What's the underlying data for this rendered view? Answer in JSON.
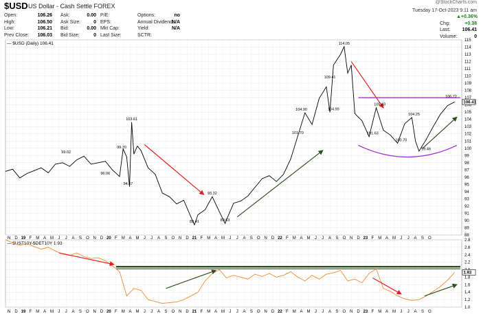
{
  "header": {
    "symbol": "$USD",
    "description": "US Dollar - Cash Settle FOREX",
    "datetime": "Tuesday 17-Oct-2023 9:11 am",
    "brand": "@StockCharts.com"
  },
  "quote": {
    "col1": [
      {
        "label": "Open:",
        "value": "106.26"
      },
      {
        "label": "High:",
        "value": "106.50"
      },
      {
        "label": "Low:",
        "value": "106.21"
      },
      {
        "label": "Prev Close:",
        "value": "106.03"
      }
    ],
    "col2": [
      {
        "label": "Ask:",
        "value": "0.00"
      },
      {
        "label": "Ask Size:",
        "value": "0"
      },
      {
        "label": "Bid:",
        "value": "0.00"
      },
      {
        "label": "Bid Size:",
        "value": "0"
      }
    ],
    "col3": [
      {
        "label": "P/E:",
        "value": ""
      },
      {
        "label": "EPS:",
        "value": ""
      },
      {
        "label": "Mkt Cap:",
        "value": ""
      },
      {
        "label": "Last Size:",
        "value": ""
      }
    ],
    "col4": [
      {
        "label": "Options:",
        "value": "no"
      },
      {
        "label": "Annual Dividend:",
        "value": "N/A"
      },
      {
        "label": "Yield:",
        "value": "N/A"
      },
      {
        "label": "SCTR:",
        "value": ""
      }
    ],
    "right": [
      {
        "label": "",
        "value": "+0.36%"
      },
      {
        "label": "Chg:",
        "value": "+0.38"
      },
      {
        "label": "Last:",
        "value": "106.41"
      },
      {
        "label": "Volume:",
        "value": "0"
      }
    ]
  },
  "chart_data": [
    {
      "type": "line",
      "legend": "$USD (Daily) 106.41",
      "ylim": [
        88,
        115
      ],
      "yticks": [
        88,
        89,
        90,
        91,
        92,
        93,
        94,
        95,
        96,
        97,
        98,
        99,
        100,
        101,
        102,
        103,
        104,
        105,
        106,
        107,
        108,
        109,
        110,
        111,
        112,
        113,
        114,
        115
      ],
      "last_value_label": "106.41",
      "x_months": [
        "N",
        "D",
        "19",
        "F",
        "M",
        "A",
        "M",
        "J",
        "J",
        "A",
        "S",
        "O",
        "N",
        "D",
        "20",
        "F",
        "M",
        "A",
        "M",
        "J",
        "J",
        "A",
        "S",
        "O",
        "N",
        "D",
        "21",
        "F",
        "M",
        "A",
        "M",
        "J",
        "J",
        "A",
        "S",
        "O",
        "N",
        "D",
        "22",
        "F",
        "M",
        "A",
        "M",
        "J",
        "J",
        "A",
        "S",
        "O",
        "N",
        "D",
        "23",
        "F",
        "M",
        "A",
        "M",
        "J",
        "J",
        "A",
        "S",
        "O"
      ],
      "series": [
        {
          "values": [
            [
              0,
              96.8
            ],
            [
              1,
              97.1
            ],
            [
              2,
              95.9
            ],
            [
              3,
              96.5
            ],
            [
              4,
              96.9
            ],
            [
              5,
              97.3
            ],
            [
              6,
              96.6
            ],
            [
              7,
              97.8
            ],
            [
              8,
              98.0
            ],
            [
              9,
              97.5
            ],
            [
              10,
              98.4
            ],
            [
              11,
              98.9
            ],
            [
              12,
              97.8
            ],
            [
              13,
              98.0
            ],
            [
              14,
              98.2
            ],
            [
              15,
              97.0
            ],
            [
              16,
              96.1
            ],
            [
              16.5,
              99.9
            ],
            [
              17,
              98.8
            ],
            [
              17.4,
              94.7
            ],
            [
              17.7,
              103.6
            ],
            [
              18,
              99.2
            ],
            [
              18.5,
              100.3
            ],
            [
              19,
              99.7
            ],
            [
              20,
              97.3
            ],
            [
              21,
              96.4
            ],
            [
              22,
              93.8
            ],
            [
              23,
              93.3
            ],
            [
              24,
              92.3
            ],
            [
              25,
              92.8
            ],
            [
              26,
              90.5
            ],
            [
              26.5,
              89.4
            ],
            [
              27,
              90.8
            ],
            [
              28,
              91.5
            ],
            [
              29,
              93.3
            ],
            [
              30,
              91.2
            ],
            [
              30.8,
              89.6
            ],
            [
              31,
              90.1
            ],
            [
              32,
              92.4
            ],
            [
              33,
              92.7
            ],
            [
              34,
              93.4
            ],
            [
              35,
              94.6
            ],
            [
              36,
              95.8
            ],
            [
              37,
              96.2
            ],
            [
              38,
              95.4
            ],
            [
              39,
              96.4
            ],
            [
              40,
              98.5
            ],
            [
              41,
              101.7
            ],
            [
              42,
              104.9
            ],
            [
              43,
              103.3
            ],
            [
              44,
              106.9
            ],
            [
              45,
              108.5
            ],
            [
              45.5,
              105.0
            ],
            [
              46,
              111.5
            ],
            [
              47,
              113.0
            ],
            [
              47.5,
              114.05
            ],
            [
              48,
              110.4
            ],
            [
              48.5,
              111.5
            ],
            [
              49,
              104.8
            ],
            [
              50,
              103.8
            ],
            [
              51,
              101.6
            ],
            [
              52,
              105.6
            ],
            [
              53,
              102.5
            ],
            [
              54,
              101.8
            ],
            [
              55,
              100.7
            ],
            [
              56,
              103.4
            ],
            [
              57,
              104.25
            ],
            [
              57.5,
              101.0
            ],
            [
              58,
              99.6
            ],
            [
              59,
              101.2
            ],
            [
              60,
              103.0
            ],
            [
              61,
              104.7
            ],
            [
              62,
              105.9
            ],
            [
              63,
              106.41
            ]
          ]
        }
      ],
      "annotations": [
        {
          "x": 8.5,
          "y": 99.02,
          "text": "99.02"
        },
        {
          "x": 14,
          "y": 96.06,
          "text": "96.06"
        },
        {
          "x": 16.3,
          "y": 99.7,
          "text": "99.70"
        },
        {
          "x": 17.2,
          "y": 94.67,
          "text": "94.67"
        },
        {
          "x": 17.7,
          "y": 103.61,
          "text": "103.61"
        },
        {
          "x": 26.5,
          "y": 89.41,
          "text": "89.41"
        },
        {
          "x": 29,
          "y": 93.32,
          "text": "93.32"
        },
        {
          "x": 30.8,
          "y": 89.63,
          "text": "89.63"
        },
        {
          "x": 41.5,
          "y": 104.9,
          "text": "104.90"
        },
        {
          "x": 41,
          "y": 101.7,
          "text": "101.70"
        },
        {
          "x": 45.5,
          "y": 109.41,
          "text": "109.41"
        },
        {
          "x": 46,
          "y": 104.99,
          "text": "104.99"
        },
        {
          "x": 47.5,
          "y": 114.05,
          "text": "114.05"
        },
        {
          "x": 52.5,
          "y": 105.63,
          "text": "105.63"
        },
        {
          "x": 51.5,
          "y": 101.63,
          "text": "101.63"
        },
        {
          "x": 55.5,
          "y": 100.7,
          "text": "100.70"
        },
        {
          "x": 57.3,
          "y": 104.25,
          "text": "104.25"
        },
        {
          "x": 59,
          "y": 99.46,
          "text": "99.46"
        },
        {
          "x": 62.5,
          "y": 106.72,
          "text": "106.72"
        }
      ],
      "arrows": [
        {
          "color": "#e02020",
          "from": [
            19.5,
            100.5
          ],
          "to": [
            27.8,
            93.6
          ]
        },
        {
          "color": "#2e4f1e",
          "from": [
            32.5,
            90.5
          ],
          "to": [
            44.5,
            99.7
          ]
        },
        {
          "color": "#e02020",
          "from": [
            48.5,
            112.0
          ],
          "to": [
            53.0,
            105.6
          ]
        },
        {
          "color": "#2e4f1e",
          "from": [
            58.5,
            100.0
          ],
          "to": [
            63.3,
            104.3
          ]
        }
      ],
      "resistance": {
        "color": "#9b30d0",
        "y": 107.0,
        "x0": 49.5,
        "x1": 63.8
      },
      "cup": {
        "color": "#9b30d0",
        "x0": 49.5,
        "x1": 63.3,
        "top": 100.4,
        "bottom": 98.5
      }
    },
    {
      "type": "line",
      "legend": "$UST10Y-$DET10Y 1.93",
      "ylim": [
        1.0,
        2.8
      ],
      "yticks": [
        1.0,
        1.2,
        1.4,
        1.6,
        1.8,
        2.0,
        2.2,
        2.4,
        2.6,
        2.8
      ],
      "last_value_label": "1.93",
      "line_color": "#f08a30",
      "series": [
        {
          "values": [
            [
              0,
              2.8
            ],
            [
              1,
              2.72
            ],
            [
              2,
              2.65
            ],
            [
              3,
              2.7
            ],
            [
              4,
              2.62
            ],
            [
              5,
              2.55
            ],
            [
              6,
              2.6
            ],
            [
              7,
              2.5
            ],
            [
              8,
              2.42
            ],
            [
              9,
              2.38
            ],
            [
              10,
              2.45
            ],
            [
              11,
              2.35
            ],
            [
              12,
              2.3
            ],
            [
              13,
              2.32
            ],
            [
              14,
              2.24
            ],
            [
              15,
              2.1
            ],
            [
              16,
              1.95
            ],
            [
              17,
              1.3
            ],
            [
              18,
              1.5
            ],
            [
              19,
              1.45
            ],
            [
              20,
              1.2
            ],
            [
              21,
              1.15
            ],
            [
              22,
              1.1
            ],
            [
              23,
              1.12
            ],
            [
              24,
              1.14
            ],
            [
              25,
              1.2
            ],
            [
              26,
              1.3
            ],
            [
              27,
              1.4
            ],
            [
              28,
              1.7
            ],
            [
              29,
              1.9
            ],
            [
              30,
              2.0
            ],
            [
              31,
              1.78
            ],
            [
              32,
              1.85
            ],
            [
              33,
              1.8
            ],
            [
              34,
              1.75
            ],
            [
              35,
              1.88
            ],
            [
              36,
              1.82
            ],
            [
              37,
              1.9
            ],
            [
              38,
              1.8
            ],
            [
              39,
              1.85
            ],
            [
              40,
              1.95
            ],
            [
              41,
              1.8
            ],
            [
              42,
              1.7
            ],
            [
              43,
              1.85
            ],
            [
              44,
              1.75
            ],
            [
              45,
              1.88
            ],
            [
              46,
              1.92
            ],
            [
              47,
              1.98
            ],
            [
              48,
              1.7
            ],
            [
              49,
              1.75
            ],
            [
              50,
              1.65
            ],
            [
              51,
              1.9
            ],
            [
              52,
              2.02
            ],
            [
              53,
              1.5
            ],
            [
              54,
              1.42
            ],
            [
              55,
              1.3
            ],
            [
              56,
              1.22
            ],
            [
              57,
              1.18
            ],
            [
              58,
              1.2
            ],
            [
              59,
              1.3
            ],
            [
              60,
              1.42
            ],
            [
              61,
              1.55
            ],
            [
              62,
              1.72
            ],
            [
              63,
              1.93
            ]
          ]
        }
      ],
      "arrows": [
        {
          "color": "#e02020",
          "from": [
            7.5,
            2.45
          ],
          "to": [
            15.2,
            2.14
          ]
        },
        {
          "color": "#2e4f1e",
          "from": [
            22.5,
            1.5
          ],
          "to": [
            29.5,
            1.98
          ]
        },
        {
          "color": "#e02020",
          "from": [
            51.5,
            1.78
          ],
          "to": [
            55.5,
            1.35
          ]
        },
        {
          "color": "#2e4f1e",
          "from": [
            58.8,
            1.3
          ],
          "to": [
            63.3,
            1.6
          ]
        }
      ],
      "resistance": {
        "color": "#2e4f1e",
        "y": 2.08,
        "x0": 15.5,
        "x1": 63.8
      }
    }
  ]
}
